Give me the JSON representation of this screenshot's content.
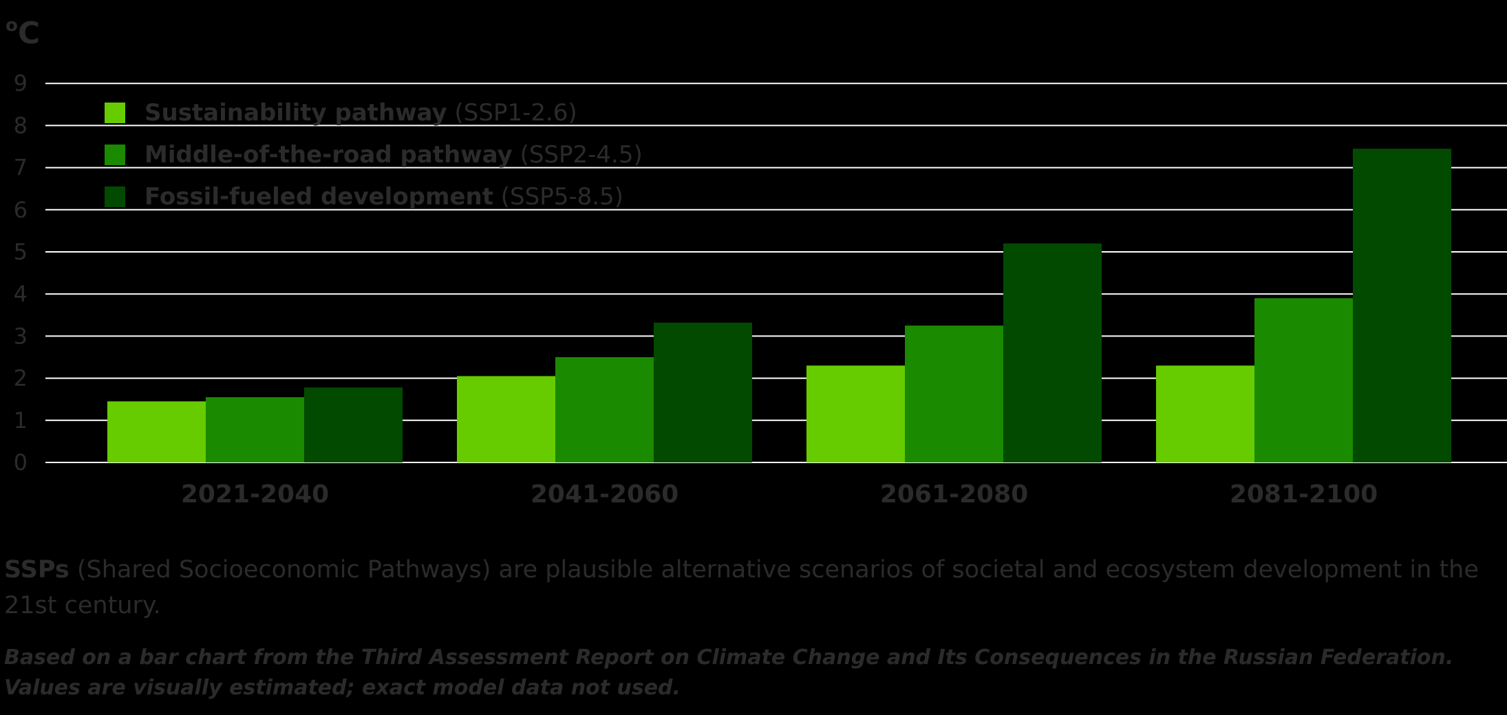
{
  "chart_data": {
    "type": "bar",
    "ylabel": "°C",
    "ylim": [
      0,
      9
    ],
    "yticks": [
      0,
      1,
      2,
      3,
      4,
      5,
      6,
      7,
      8,
      9
    ],
    "grid": true,
    "legend_position": "top-left",
    "categories": [
      "2021-2040",
      "2041-2060",
      "2061-2080",
      "2081-2100"
    ],
    "series": [
      {
        "name": "Sustainability pathway",
        "code": "(SSP1-2.6)",
        "color": "#66cc00",
        "values": [
          1.45,
          2.05,
          2.3,
          2.3
        ]
      },
      {
        "name": "Middle-of-the-road pathway",
        "code": "(SSP2-4.5)",
        "color": "#1a8a00",
        "values": [
          1.55,
          2.5,
          3.25,
          3.9
        ]
      },
      {
        "name": "Fossil-fueled development",
        "code": "(SSP5-8.5)",
        "color": "#024a00",
        "values": [
          1.78,
          3.32,
          5.2,
          7.45
        ]
      }
    ]
  },
  "note": {
    "term": "SSPs",
    "text": " (Shared Socioeconomic Pathways) are plausible alternative scenarios of societal and ecosystem development in the 21st century."
  },
  "source": {
    "line1": "Based on a bar chart from the Third Assessment Report on Climate Change and Its Consequences in the Russian Federation.",
    "line2": "Values are visually estimated; exact model data not used."
  }
}
